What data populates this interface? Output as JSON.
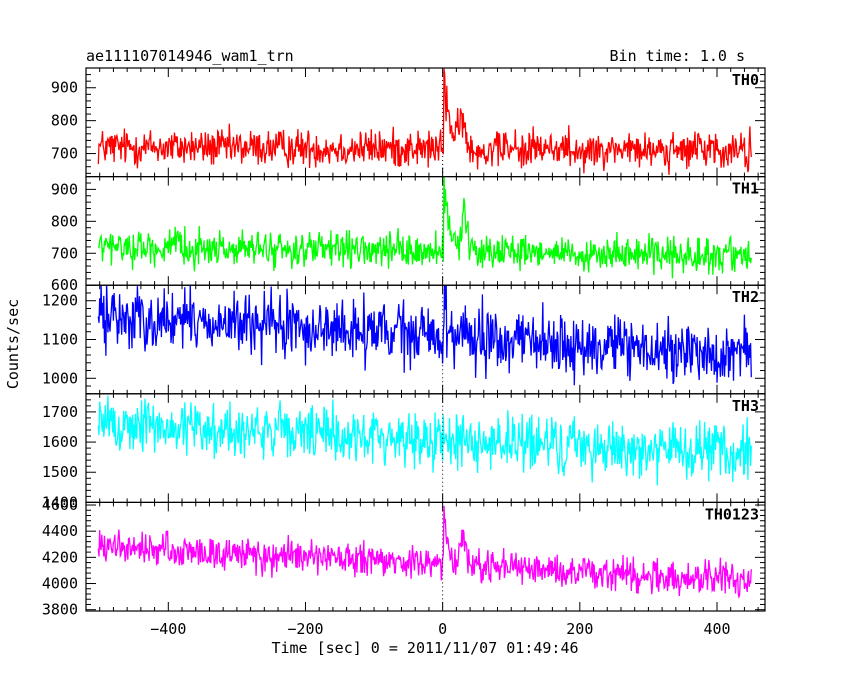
{
  "chart_data": {
    "type": "line",
    "title": "ae111107014946_wam1_trn",
    "bin_time": "Bin time: 1.0 s",
    "xlabel": "Time [sec] 0 = 2011/11/07 01:49:46",
    "ylabel": "Counts/sec",
    "xlim": [
      -520,
      470
    ],
    "x_ticks": [
      -400,
      -200,
      0,
      200,
      400
    ],
    "x_start": -502,
    "x_end": 450,
    "panels": [
      {
        "name": "TH0",
        "color": "#ff0000",
        "ylim": [
          630,
          960
        ],
        "y_ticks": [
          700,
          800,
          900
        ],
        "baseline_at_start": 720,
        "baseline_at_end": 710,
        "noise_amplitude": 85,
        "burst": {
          "peak_x": 2,
          "peak_value": 960,
          "decay_s": 9,
          "secondary_x": 28,
          "secondary_value": 800
        }
      },
      {
        "name": "TH1",
        "color": "#00ff00",
        "ylim": [
          600,
          940
        ],
        "y_ticks": [
          600,
          700,
          800,
          900
        ],
        "baseline_at_start": 720,
        "baseline_at_end": 690,
        "noise_amplitude": 80,
        "burst": {
          "peak_x": 2,
          "peak_value": 940,
          "decay_s": 7,
          "secondary_x": 32,
          "secondary_value": 830
        }
      },
      {
        "name": "TH2",
        "color": "#0000ff",
        "ylim": [
          960,
          1240
        ],
        "y_ticks": [
          1000,
          1100,
          1200
        ],
        "baseline_at_start": 1160,
        "baseline_at_end": 1060,
        "noise_amplitude": 120,
        "burst": {
          "peak_x": 3,
          "peak_value": 1230,
          "decay_s": 4,
          "secondary_x": 30,
          "secondary_value": 1140
        }
      },
      {
        "name": "TH3",
        "color": "#00ffff",
        "ylim": [
          1400,
          1760
        ],
        "y_ticks": [
          1400,
          1500,
          1600,
          1700
        ],
        "baseline_at_start": 1660,
        "baseline_at_end": 1560,
        "noise_amplitude": 140,
        "burst": null
      },
      {
        "name": "TH0123",
        "color": "#ff00ff",
        "ylim": [
          3790,
          4620
        ],
        "y_ticks": [
          3800,
          4000,
          4200,
          4400,
          4600
        ],
        "baseline_at_start": 4280,
        "baseline_at_end": 4020,
        "noise_amplitude": 190,
        "burst": {
          "peak_x": 2,
          "peak_value": 4620,
          "decay_s": 6,
          "secondary_x": 30,
          "secondary_value": 4420
        }
      }
    ]
  }
}
